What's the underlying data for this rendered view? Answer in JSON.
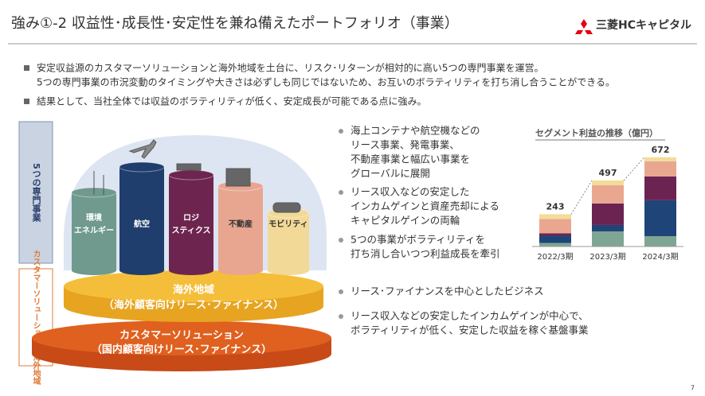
{
  "header": {
    "title": "強み①-2 収益性･成長性･安定性を兼ね備えたポートフォリオ（事業）",
    "logo": "三菱HCキャピタル"
  },
  "bullets": [
    [
      "安定収益源のカスタマーソリューションと海外地域を土台に、リスク･リターンが相対的に高い5つの専門事業を運営。",
      "5つの専門事業の市況変動のタイミングや大きさは必ずしも同じではないため、お互いのボラティリティを打ち消し合うことができる。"
    ],
    [
      "結果として、当社全体では収益のボラティリティが低く、安定成長が可能である点に強み。"
    ]
  ],
  "diagram": {
    "side_top": "5つの専門事業",
    "side_bottom": "カスタマーソリューション・海外地域",
    "segments": [
      [
        "環境",
        "エネルギー"
      ],
      [
        "航空"
      ],
      [
        "ロジ",
        "スティクス"
      ],
      [
        "不動産"
      ],
      [
        "モビリティ"
      ]
    ],
    "overseas": [
      "海外地域",
      "（海外顧客向けリース･ファイナンス）"
    ],
    "customer": [
      "カスタマーソリューション",
      "（国内顧客向けリース･ファイナンス）"
    ]
  },
  "points_top": [
    [
      "海上コンテナや航空機などの",
      "リース事業、発電事業、",
      "不動産事業と幅広い事業を",
      "グローバルに展開"
    ],
    [
      "リース収入などの安定した",
      "インカムゲインと資産売却による",
      "キャピタルゲインの両輪"
    ],
    [
      "5つの事業がボラティリティを",
      "打ち消し合いつつ利益成長を牽引"
    ]
  ],
  "points_bottom": [
    [
      "リース･ファイナンスを中心としたビジネス"
    ],
    [
      "リース収入などの安定したインカムゲインが中心で、",
      "ボラティリティが低く、安定した収益を稼ぐ基盤事業"
    ]
  ],
  "page_number": "7",
  "chart_data": {
    "type": "bar",
    "stacked": true,
    "title": "セグメント利益の推移（億円）",
    "categories": [
      "2022/3期",
      "2023/3期",
      "2024/3期"
    ],
    "totals": [
      243,
      497,
      672
    ],
    "series": [
      {
        "color": "#7fa594",
        "values": [
          27,
          114,
          78
        ]
      },
      {
        "color": "#1f4478",
        "values": [
          54,
          48,
          270
        ]
      },
      {
        "color": "#6b2452",
        "values": [
          18,
          162,
          180
        ]
      },
      {
        "color": "#e9a790",
        "values": [
          108,
          137,
          114
        ]
      },
      {
        "color": "#f3dc98",
        "values": [
          36,
          36,
          30
        ]
      }
    ]
  }
}
